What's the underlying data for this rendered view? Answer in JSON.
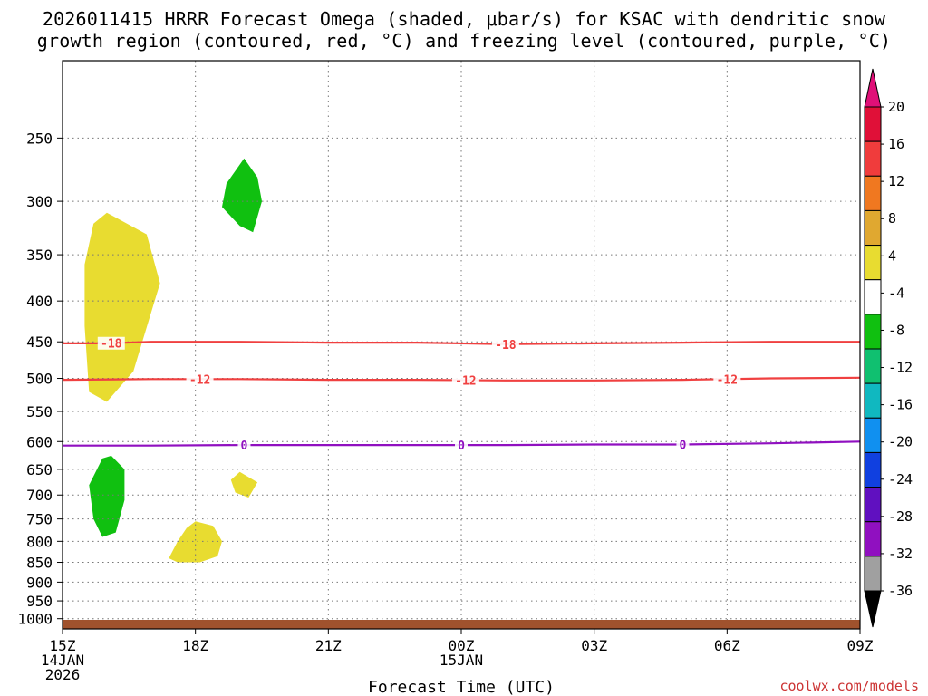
{
  "title": {
    "line1": "2026011415 HRRR Forecast Omega (shaded, μbar/s) for KSAC with dendritic snow",
    "line2": "growth region (contoured, red, °C) and freezing level (contoured, purple, °C)"
  },
  "credit": "coolwx.com/models",
  "credit_color": "#cc3333",
  "chart_data": {
    "type": "time-height cross section",
    "xlabel": "Forecast Time (UTC)",
    "x_hours": [
      0,
      3,
      6,
      9,
      12,
      15,
      18
    ],
    "x_ticks": [
      {
        "hour": 0,
        "lines": [
          "15Z",
          "14JAN",
          "2026"
        ]
      },
      {
        "hour": 3,
        "lines": [
          "18Z"
        ]
      },
      {
        "hour": 6,
        "lines": [
          "21Z"
        ]
      },
      {
        "hour": 9,
        "lines": [
          "00Z",
          "15JAN"
        ]
      },
      {
        "hour": 12,
        "lines": [
          "03Z"
        ]
      },
      {
        "hour": 15,
        "lines": [
          "06Z"
        ]
      },
      {
        "hour": 18,
        "lines": [
          "09Z"
        ]
      }
    ],
    "xlim": [
      0,
      18
    ],
    "y_pressure_ticks": [
      250,
      300,
      350,
      400,
      450,
      500,
      550,
      600,
      650,
      700,
      750,
      800,
      850,
      900,
      950,
      1000
    ],
    "ylim_hPa": [
      1030,
      200
    ],
    "y_scale": "log-pressure",
    "grid": "dotted",
    "shading_legend": {
      "labels": [
        "20",
        "16",
        "12",
        "8",
        "4",
        "-4",
        "-8",
        "-12",
        "-16",
        "-20",
        "-24",
        "-28",
        "-32",
        "-36"
      ],
      "colors": [
        "#e01038",
        "#f03c3c",
        "#f07820",
        "#e0a830",
        "#e8dc30",
        "#ffffff",
        "#10c010",
        "#10c070",
        "#10b8c0",
        "#1090f0",
        "#1040e0",
        "#6010c0",
        "#9010c0",
        "#a0a0a0",
        "#000000"
      ],
      "top_arrow_color": "#e01078",
      "bottom_arrow_color": "#000000"
    },
    "omega_regions": [
      {
        "color": "#10c010",
        "points": [
          [
            4.1,
            265
          ],
          [
            4.4,
            280
          ],
          [
            4.5,
            300
          ],
          [
            4.3,
            328
          ],
          [
            4.0,
            322
          ],
          [
            3.6,
            305
          ],
          [
            3.7,
            285
          ]
        ]
      },
      {
        "color": "#e8dc30",
        "points": [
          [
            1.0,
            310
          ],
          [
            1.9,
            330
          ],
          [
            2.2,
            380
          ],
          [
            1.8,
            450
          ],
          [
            1.6,
            490
          ],
          [
            1.0,
            535
          ],
          [
            0.6,
            520
          ],
          [
            0.5,
            430
          ],
          [
            0.5,
            360
          ],
          [
            0.7,
            320
          ]
        ]
      },
      {
        "color": "#10c010",
        "points": [
          [
            1.1,
            625
          ],
          [
            1.4,
            650
          ],
          [
            1.4,
            710
          ],
          [
            1.2,
            780
          ],
          [
            0.9,
            790
          ],
          [
            0.7,
            750
          ],
          [
            0.6,
            680
          ],
          [
            0.9,
            630
          ]
        ]
      },
      {
        "color": "#e8dc30",
        "points": [
          [
            4.0,
            655
          ],
          [
            4.4,
            675
          ],
          [
            4.2,
            705
          ],
          [
            3.9,
            695
          ],
          [
            3.8,
            670
          ]
        ]
      },
      {
        "color": "#e8dc30",
        "points": [
          [
            3.0,
            755
          ],
          [
            3.4,
            765
          ],
          [
            3.6,
            800
          ],
          [
            3.5,
            835
          ],
          [
            3.1,
            850
          ],
          [
            2.6,
            850
          ],
          [
            2.4,
            840
          ],
          [
            2.6,
            800
          ],
          [
            2.8,
            770
          ]
        ]
      }
    ],
    "contours": [
      {
        "value": -18,
        "label": "-18",
        "color": "#f04040",
        "points": [
          [
            0,
            452
          ],
          [
            1,
            452
          ],
          [
            2,
            450
          ],
          [
            4,
            450
          ],
          [
            6,
            451
          ],
          [
            8,
            451
          ],
          [
            10,
            453
          ],
          [
            12,
            452
          ],
          [
            14,
            451
          ],
          [
            16,
            450
          ],
          [
            18,
            450
          ]
        ],
        "label_hours": [
          1.1,
          10.0
        ]
      },
      {
        "value": -12,
        "label": "-12",
        "color": "#f04040",
        "points": [
          [
            0,
            502
          ],
          [
            2,
            501
          ],
          [
            4,
            501
          ],
          [
            6,
            502
          ],
          [
            8,
            502
          ],
          [
            10,
            503
          ],
          [
            12,
            503
          ],
          [
            14,
            502
          ],
          [
            16,
            500
          ],
          [
            18,
            499
          ]
        ],
        "label_hours": [
          3.1,
          9.1,
          15.0
        ]
      },
      {
        "value": 0,
        "label": "0",
        "color": "#9010c0",
        "points": [
          [
            0,
            607
          ],
          [
            2,
            607
          ],
          [
            4,
            606
          ],
          [
            6,
            606
          ],
          [
            8,
            606
          ],
          [
            10,
            606
          ],
          [
            12,
            605
          ],
          [
            14,
            605
          ],
          [
            16,
            603
          ],
          [
            18,
            600
          ]
        ],
        "label_hours": [
          4.1,
          9.0,
          14.0
        ]
      }
    ],
    "surface_color": "#a0522d"
  }
}
